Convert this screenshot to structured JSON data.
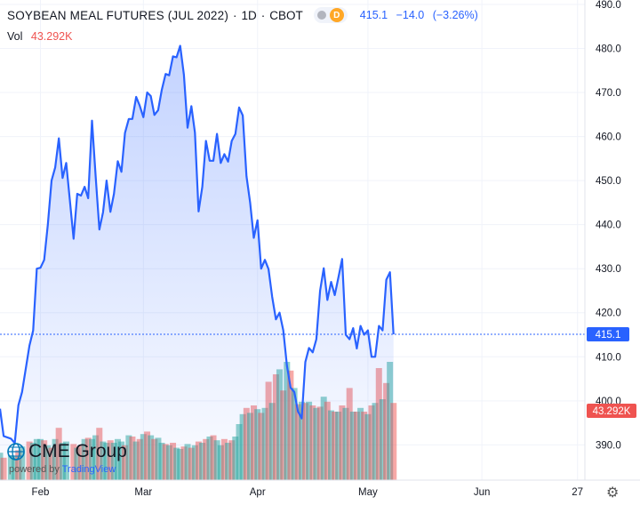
{
  "header": {
    "title": "SOYBEAN MEAL FUTURES (JUL 2022)",
    "interval": "1D",
    "exchange": "CBOT",
    "badge": "D",
    "last": "415.1",
    "change": "−14.0",
    "change_pct": "(−3.26%)",
    "vol_label": "Vol",
    "vol_value": "43.292K",
    "sep": "·"
  },
  "branding": {
    "brand": "CME Group",
    "powered_by": "powered by",
    "tv": "TradingView"
  },
  "colors": {
    "line": "#2962ff",
    "vol_up": "#26a69a",
    "vol_down": "#ef5350",
    "price_tag": "#2962ff",
    "vol_tag": "#ef5350"
  },
  "chart_data": {
    "type": "area",
    "y_range": [
      382,
      491
    ],
    "y_ticks": [
      "490.0",
      "480.0",
      "470.0",
      "460.0",
      "450.0",
      "440.0",
      "430.0",
      "420.0",
      "410.0",
      "400.0",
      "390.0"
    ],
    "y_tick_values": [
      490,
      480,
      470,
      460,
      450,
      440,
      430,
      420,
      410,
      400,
      390
    ],
    "x_ticks": [
      "Feb",
      "Mar",
      "Apr",
      "May",
      "Jun",
      "27"
    ],
    "x_tick_pos": [
      2022.0849,
      2022.1616,
      2022.2466,
      2022.3288,
      2022.4137,
      2022.4849
    ],
    "x_range": [
      2022.0548,
      2022.4904
    ],
    "last_price_label": "415.1",
    "last_price": 415.1,
    "vol_label_tag": "43.292K",
    "close": [
      [
        2022.0548,
        398.2
      ],
      [
        2022.0575,
        392.0
      ],
      [
        2022.063,
        391.4
      ],
      [
        2022.0658,
        390.4
      ],
      [
        2022.0685,
        399.0
      ],
      [
        2022.0712,
        402.0
      ],
      [
        2022.0767,
        412.5
      ],
      [
        2022.0795,
        416.0
      ],
      [
        2022.0822,
        430.0
      ],
      [
        2022.0849,
        430.2
      ],
      [
        2022.0877,
        432.0
      ],
      [
        2022.0904,
        440.0
      ],
      [
        2022.0932,
        450.0
      ],
      [
        2022.0959,
        453.0
      ],
      [
        2022.0986,
        459.6
      ],
      [
        2022.1014,
        450.6
      ],
      [
        2022.1041,
        454.0
      ],
      [
        2022.1096,
        436.8
      ],
      [
        2022.1123,
        447.0
      ],
      [
        2022.1151,
        446.6
      ],
      [
        2022.1178,
        448.6
      ],
      [
        2022.1205,
        446.0
      ],
      [
        2022.1233,
        463.6
      ],
      [
        2022.126,
        451.0
      ],
      [
        2022.1288,
        438.9
      ],
      [
        2022.1315,
        442.8
      ],
      [
        2022.1342,
        450.0
      ],
      [
        2022.137,
        442.9
      ],
      [
        2022.1397,
        447.0
      ],
      [
        2022.1425,
        454.4
      ],
      [
        2022.1452,
        452.0
      ],
      [
        2022.1479,
        460.8
      ],
      [
        2022.1507,
        464.0
      ],
      [
        2022.1534,
        464.0
      ],
      [
        2022.1562,
        469.0
      ],
      [
        2022.1589,
        467.0
      ],
      [
        2022.1616,
        464.4
      ],
      [
        2022.1644,
        470.0
      ],
      [
        2022.1671,
        469.2
      ],
      [
        2022.1698,
        464.9
      ],
      [
        2022.1726,
        466.0
      ],
      [
        2022.1753,
        470.6
      ],
      [
        2022.1781,
        474.2
      ],
      [
        2022.1808,
        473.9
      ],
      [
        2022.1836,
        478.2
      ],
      [
        2022.1863,
        478.0
      ],
      [
        2022.189,
        480.6
      ],
      [
        2022.1918,
        474.0
      ],
      [
        2022.1945,
        462.0
      ],
      [
        2022.1973,
        466.9
      ],
      [
        2022.2,
        460.9
      ],
      [
        2022.2027,
        443.0
      ],
      [
        2022.2055,
        448.6
      ],
      [
        2022.2082,
        459.0
      ],
      [
        2022.211,
        454.5
      ],
      [
        2022.2137,
        454.5
      ],
      [
        2022.2164,
        460.6
      ],
      [
        2022.2192,
        454.0
      ],
      [
        2022.2219,
        456.0
      ],
      [
        2022.2247,
        454.3
      ],
      [
        2022.2274,
        459.0
      ],
      [
        2022.2301,
        460.6
      ],
      [
        2022.2329,
        466.6
      ],
      [
        2022.2356,
        464.8
      ],
      [
        2022.2384,
        451.0
      ],
      [
        2022.2411,
        445.0
      ],
      [
        2022.2438,
        437.0
      ],
      [
        2022.2466,
        441.0
      ],
      [
        2022.2493,
        430.0
      ],
      [
        2022.2521,
        432.0
      ],
      [
        2022.2548,
        429.9
      ],
      [
        2022.2575,
        423.6
      ],
      [
        2022.2603,
        418.5
      ],
      [
        2022.263,
        420.0
      ],
      [
        2022.2658,
        416.0
      ],
      [
        2022.2685,
        408.0
      ],
      [
        2022.2712,
        403.0
      ],
      [
        2022.274,
        402.0
      ],
      [
        2022.2767,
        397.6
      ],
      [
        2022.2795,
        396.0
      ],
      [
        2022.2822,
        408.8
      ],
      [
        2022.2849,
        412.0
      ],
      [
        2022.2877,
        411.0
      ],
      [
        2022.2904,
        414.0
      ],
      [
        2022.2932,
        425.0
      ],
      [
        2022.2959,
        430.1
      ],
      [
        2022.2986,
        422.9
      ],
      [
        2022.3014,
        427.0
      ],
      [
        2022.3041,
        424.0
      ],
      [
        2022.3068,
        428.0
      ],
      [
        2022.3096,
        432.2
      ],
      [
        2022.3123,
        415.0
      ],
      [
        2022.3151,
        414.0
      ],
      [
        2022.3178,
        416.5
      ],
      [
        2022.3205,
        411.9
      ],
      [
        2022.3233,
        417.0
      ],
      [
        2022.326,
        415.0
      ],
      [
        2022.3288,
        416.0
      ],
      [
        2022.3315,
        410.0
      ],
      [
        2022.3342,
        410.0
      ],
      [
        2022.337,
        417.0
      ],
      [
        2022.3397,
        416.0
      ],
      [
        2022.3425,
        427.5
      ],
      [
        2022.3452,
        429.2
      ],
      [
        2022.3479,
        415.1
      ]
    ],
    "volume": [
      [
        2022.0548,
        "up",
        0.22
      ],
      [
        2022.0575,
        "down",
        0.18
      ],
      [
        2022.063,
        "up",
        0.2
      ],
      [
        2022.0658,
        "up",
        0.19
      ],
      [
        2022.0685,
        "down",
        0.24
      ],
      [
        2022.0712,
        "up",
        0.27
      ],
      [
        2022.0767,
        "down",
        0.31
      ],
      [
        2022.0795,
        "up",
        0.3
      ],
      [
        2022.0822,
        "up",
        0.33
      ],
      [
        2022.0849,
        "up",
        0.33
      ],
      [
        2022.0877,
        "down",
        0.32
      ],
      [
        2022.0904,
        "up",
        0.28
      ],
      [
        2022.0932,
        "down",
        0.26
      ],
      [
        2022.0959,
        "up",
        0.33
      ],
      [
        2022.0986,
        "down",
        0.42
      ],
      [
        2022.1014,
        "up",
        0.3
      ],
      [
        2022.1041,
        "up",
        0.31
      ],
      [
        2022.1096,
        "down",
        0.29
      ],
      [
        2022.1123,
        "up",
        0.26
      ],
      [
        2022.1151,
        "down",
        0.28
      ],
      [
        2022.1178,
        "up",
        0.33
      ],
      [
        2022.1205,
        "down",
        0.34
      ],
      [
        2022.1233,
        "up",
        0.33
      ],
      [
        2022.126,
        "up",
        0.36
      ],
      [
        2022.1288,
        "down",
        0.42
      ],
      [
        2022.1315,
        "up",
        0.31
      ],
      [
        2022.1342,
        "up",
        0.3
      ],
      [
        2022.137,
        "down",
        0.32
      ],
      [
        2022.1397,
        "up",
        0.3
      ],
      [
        2022.1425,
        "up",
        0.33
      ],
      [
        2022.1452,
        "up",
        0.31
      ],
      [
        2022.1479,
        "down",
        0.28
      ],
      [
        2022.1507,
        "up",
        0.36
      ],
      [
        2022.1534,
        "down",
        0.35
      ],
      [
        2022.1562,
        "up",
        0.31
      ],
      [
        2022.1589,
        "down",
        0.33
      ],
      [
        2022.1616,
        "up",
        0.37
      ],
      [
        2022.1644,
        "down",
        0.39
      ],
      [
        2022.1671,
        "up",
        0.36
      ],
      [
        2022.1698,
        "down",
        0.33
      ],
      [
        2022.1726,
        "up",
        0.34
      ],
      [
        2022.1753,
        "up",
        0.3
      ],
      [
        2022.1781,
        "down",
        0.29
      ],
      [
        2022.1808,
        "up",
        0.28
      ],
      [
        2022.1836,
        "down",
        0.3
      ],
      [
        2022.1863,
        "up",
        0.26
      ],
      [
        2022.189,
        "up",
        0.25
      ],
      [
        2022.1918,
        "down",
        0.27
      ],
      [
        2022.1945,
        "up",
        0.29
      ],
      [
        2022.1973,
        "down",
        0.26
      ],
      [
        2022.2,
        "up",
        0.28
      ],
      [
        2022.2027,
        "down",
        0.31
      ],
      [
        2022.2055,
        "up",
        0.3
      ],
      [
        2022.2082,
        "down",
        0.33
      ],
      [
        2022.211,
        "up",
        0.35
      ],
      [
        2022.2137,
        "down",
        0.36
      ],
      [
        2022.2164,
        "up",
        0.32
      ],
      [
        2022.2192,
        "up",
        0.28
      ],
      [
        2022.2219,
        "down",
        0.33
      ],
      [
        2022.2247,
        "up",
        0.3
      ],
      [
        2022.2274,
        "down",
        0.32
      ],
      [
        2022.2301,
        "up",
        0.35
      ],
      [
        2022.2329,
        "up",
        0.45
      ],
      [
        2022.2356,
        "up",
        0.53
      ],
      [
        2022.2384,
        "down",
        0.58
      ],
      [
        2022.2411,
        "up",
        0.54
      ],
      [
        2022.2438,
        "down",
        0.6
      ],
      [
        2022.2466,
        "up",
        0.57
      ],
      [
        2022.2493,
        "down",
        0.54
      ],
      [
        2022.2521,
        "up",
        0.58
      ],
      [
        2022.2548,
        "down",
        0.79
      ],
      [
        2022.2575,
        "up",
        0.62
      ],
      [
        2022.2603,
        "down",
        0.85
      ],
      [
        2022.263,
        "up",
        0.89
      ],
      [
        2022.2658,
        "down",
        0.72
      ],
      [
        2022.2685,
        "up",
        0.95
      ],
      [
        2022.2712,
        "down",
        0.88
      ],
      [
        2022.274,
        "up",
        0.74
      ],
      [
        2022.2767,
        "down",
        0.61
      ],
      [
        2022.2795,
        "up",
        0.63
      ],
      [
        2022.2822,
        "down",
        0.62
      ],
      [
        2022.2849,
        "up",
        0.63
      ],
      [
        2022.2877,
        "down",
        0.6
      ],
      [
        2022.2904,
        "up",
        0.58
      ],
      [
        2022.2932,
        "down",
        0.59
      ],
      [
        2022.2959,
        "up",
        0.67
      ],
      [
        2022.2986,
        "down",
        0.63
      ],
      [
        2022.3014,
        "up",
        0.56
      ],
      [
        2022.3041,
        "down",
        0.55
      ],
      [
        2022.3068,
        "up",
        0.55
      ],
      [
        2022.3096,
        "down",
        0.6
      ],
      [
        2022.3123,
        "up",
        0.58
      ],
      [
        2022.3151,
        "down",
        0.74
      ],
      [
        2022.3178,
        "up",
        0.55
      ],
      [
        2022.3205,
        "down",
        0.55
      ],
      [
        2022.3233,
        "up",
        0.58
      ],
      [
        2022.326,
        "down",
        0.55
      ],
      [
        2022.3288,
        "up",
        0.53
      ],
      [
        2022.3315,
        "down",
        0.6
      ],
      [
        2022.3342,
        "up",
        0.62
      ],
      [
        2022.337,
        "down",
        0.9
      ],
      [
        2022.3397,
        "up",
        0.65
      ],
      [
        2022.3425,
        "down",
        0.78
      ],
      [
        2022.3452,
        "up",
        0.95
      ],
      [
        2022.3479,
        "down",
        0.62
      ]
    ]
  }
}
